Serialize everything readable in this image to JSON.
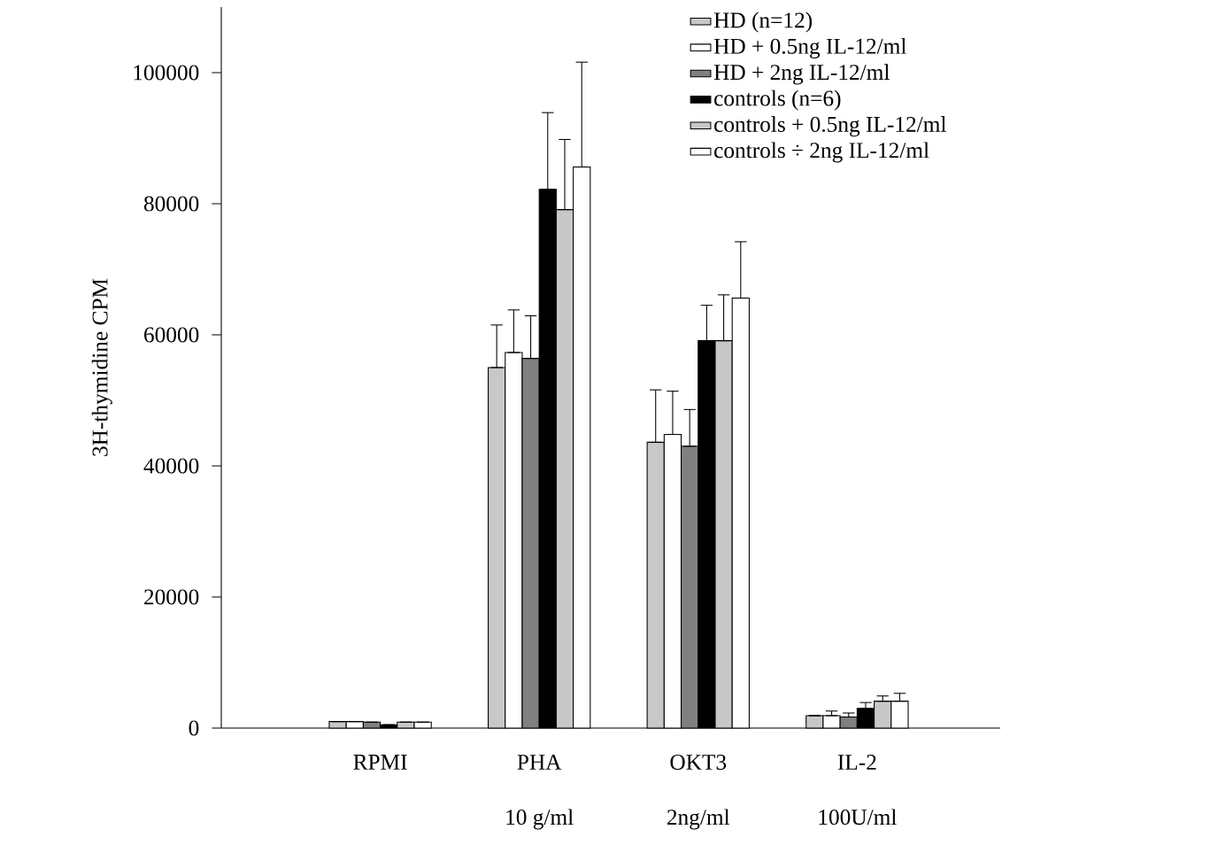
{
  "chart_data": {
    "type": "bar",
    "ylabel": "3H-thymidine CPM",
    "categories": [
      "RPMI",
      "PHA",
      "OKT3",
      "IL-2"
    ],
    "annotations": [
      "10 g/ml",
      "2ng/ml",
      "100U/ml"
    ],
    "series": [
      {
        "name": "HD (n=12)",
        "color": "#c8c8c8",
        "values": [
          1000,
          55000,
          43600,
          1900
        ],
        "errors": [
          null,
          [
            55000,
            61500
          ],
          [
            43600,
            51600
          ],
          null
        ]
      },
      {
        "name": "HD + 0.5ng IL-12/ml",
        "color": "#ffffff",
        "values": [
          1000,
          57300,
          44800,
          1900
        ],
        "errors": [
          null,
          [
            57300,
            63800
          ],
          [
            44800,
            51400
          ],
          [
            1900,
            2600
          ]
        ]
      },
      {
        "name": "HD + 2ng IL-12/ml",
        "color": "#808080",
        "values": [
          900,
          56400,
          43000,
          1700
        ],
        "errors": [
          null,
          [
            56400,
            62900
          ],
          [
            43000,
            48600
          ],
          [
            1700,
            2300
          ]
        ]
      },
      {
        "name": "controls (n=6)",
        "color": "#000000",
        "values": [
          500,
          82200,
          59100,
          3000
        ],
        "errors": [
          null,
          [
            82200,
            93900
          ],
          [
            59100,
            64500
          ],
          [
            3000,
            3900
          ]
        ]
      },
      {
        "name": "controls + 0.5ng IL-12/ml",
        "color": "#c8c8c8",
        "values": [
          900,
          79100,
          59100,
          4100
        ],
        "errors": [
          null,
          [
            79100,
            89800
          ],
          [
            59100,
            66100
          ],
          [
            4100,
            4900
          ]
        ]
      },
      {
        "name": "controls ÷ 2ng IL-12/ml",
        "color": "#ffffff",
        "values": [
          900,
          85600,
          65600,
          4100
        ],
        "errors": [
          null,
          [
            85600,
            101600
          ],
          [
            65600,
            74200
          ],
          [
            4100,
            5300
          ]
        ]
      }
    ],
    "ylim": [
      0,
      110000
    ],
    "yticks": [
      0,
      20000,
      40000,
      60000,
      80000,
      100000
    ],
    "legend": "top right",
    "grid": false
  }
}
